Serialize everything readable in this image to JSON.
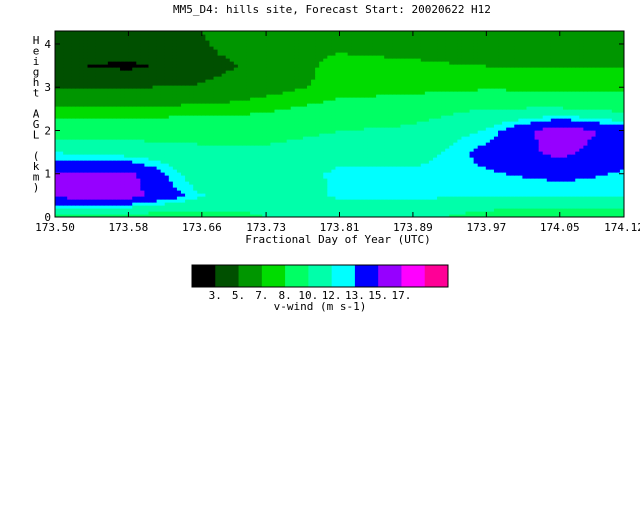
{
  "chart_data": {
    "type": "heatmap",
    "title": "MM5_D4: hills site,  Forecast Start: 20020622 H12",
    "xlabel": "Fractional Day of Year (UTC)",
    "ylabel": "Height AGL (km)",
    "x_ticks": [
      "173.50",
      "173.58",
      "173.66",
      "173.73",
      "173.81",
      "173.89",
      "173.97",
      "174.05",
      "174.12"
    ],
    "xlim": [
      173.5,
      174.12
    ],
    "y_ticks": [
      "0",
      "1",
      "2",
      "3",
      "4"
    ],
    "ylim": [
      0,
      4.3
    ],
    "colorbar": {
      "label": "v-wind (m s-1)",
      "tick_labels": [
        "3.",
        "5.",
        "7.",
        "8.",
        "10.",
        "12.",
        "13.",
        "15.",
        "17."
      ],
      "levels": [
        3,
        5,
        7,
        8,
        10,
        12,
        13,
        15,
        17
      ],
      "colors": [
        "#000000",
        "#005000",
        "#009600",
        "#00dc00",
        "#00ff64",
        "#00ffaa",
        "#00ffff",
        "#0000ff",
        "#9600ff",
        "#ff00ff",
        "#ff0096"
      ]
    },
    "x": [
      173.5,
      173.58,
      173.66,
      173.73,
      173.81,
      173.89,
      173.97,
      174.05,
      174.12
    ],
    "y": [
      0,
      0.5,
      1.0,
      1.5,
      2.0,
      2.5,
      3.0,
      3.5,
      4.0,
      4.3
    ],
    "z": [
      [
        9.3,
        8.6,
        9.1,
        10.0,
        10.6,
        10.6,
        9.0,
        8.3,
        8.5
      ],
      [
        15.6,
        15.8,
        12.1,
        10.5,
        12.3,
        12.3,
        12.0,
        12.0,
        12.2
      ],
      [
        15.2,
        15.6,
        10.6,
        10.8,
        12.3,
        12.5,
        12.8,
        13.5,
        12.8
      ],
      [
        12.0,
        11.3,
        10.6,
        10.6,
        11.6,
        11.0,
        13.6,
        15.5,
        13.6
      ],
      [
        9.0,
        9.0,
        9.0,
        9.0,
        10.0,
        10.4,
        12.2,
        16.4,
        14.0
      ],
      [
        7.4,
        7.4,
        7.5,
        7.8,
        8.6,
        9.0,
        10.1,
        10.2,
        9.5
      ],
      [
        4.8,
        5.0,
        5.2,
        6.5,
        7.4,
        7.6,
        7.8,
        7.6,
        7.6
      ],
      [
        3.3,
        2.6,
        4.2,
        5.6,
        7.6,
        7.4,
        7.0,
        7.0,
        7.0
      ],
      [
        4.6,
        4.1,
        4.8,
        6.7,
        6.6,
        6.2,
        5.4,
        5.2,
        5.6
      ],
      [
        5.0,
        5.0,
        5.0,
        6.2,
        6.0,
        5.8,
        5.0,
        5.0,
        5.0
      ]
    ]
  }
}
